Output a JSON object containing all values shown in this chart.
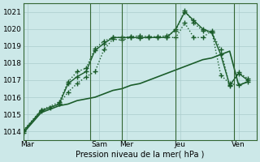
{
  "xlabel": "Pression niveau de la mer( hPa )",
  "bg_color": "#cce8e8",
  "grid_color": "#aacccc",
  "line_color": "#1a5c2a",
  "vline_color": "#336633",
  "ylim": [
    1013.5,
    1021.5
  ],
  "yticks": [
    1014,
    1015,
    1016,
    1017,
    1018,
    1019,
    1020,
    1021
  ],
  "xlim": [
    0,
    26
  ],
  "day_labels": [
    "Mar",
    "Sam",
    "Mer",
    "Jeu",
    "Ven"
  ],
  "day_positions": [
    0.5,
    8.5,
    11.5,
    17.5,
    24.0
  ],
  "vline_positions": [
    7.5,
    11.0,
    17.0,
    23.5
  ],
  "series": [
    {
      "x": [
        0,
        1,
        2,
        3,
        4,
        5,
        6,
        7,
        8,
        9,
        10,
        11,
        12,
        13,
        14,
        15,
        16,
        17,
        18,
        19,
        20,
        21,
        22,
        23,
        24,
        25
      ],
      "y": [
        1013.9,
        1014.5,
        1015.1,
        1015.3,
        1015.5,
        1015.6,
        1015.8,
        1015.9,
        1016.0,
        1016.2,
        1016.4,
        1016.5,
        1016.7,
        1016.8,
        1017.0,
        1017.2,
        1017.4,
        1017.6,
        1017.8,
        1018.0,
        1018.2,
        1018.3,
        1018.5,
        1018.7,
        1016.7,
        1016.9
      ],
      "linestyle": "-",
      "marker": null,
      "linewidth": 1.2
    },
    {
      "x": [
        0,
        2,
        4,
        5,
        6,
        7,
        8,
        9,
        10,
        11,
        12,
        13,
        14,
        15,
        16,
        17,
        18,
        19,
        20,
        21,
        22,
        23,
        24,
        25
      ],
      "y": [
        1014.0,
        1015.2,
        1015.6,
        1016.8,
        1017.2,
        1017.5,
        1018.75,
        1019.15,
        1019.5,
        1019.5,
        1019.5,
        1019.5,
        1019.5,
        1019.5,
        1019.5,
        1020.0,
        1021.0,
        1020.5,
        1020.0,
        1019.8,
        1018.5,
        1016.7,
        1017.4,
        1017.0
      ],
      "linestyle": "-",
      "marker": "+",
      "linewidth": 1.0
    },
    {
      "x": [
        0,
        2,
        4,
        5,
        6,
        7,
        8,
        9,
        10,
        11,
        12,
        13,
        14,
        15,
        16,
        17,
        18,
        19,
        20,
        21,
        22,
        23,
        24,
        25
      ],
      "y": [
        1014.05,
        1015.25,
        1015.7,
        1016.9,
        1017.5,
        1017.7,
        1018.85,
        1019.3,
        1019.5,
        1019.5,
        1019.55,
        1019.6,
        1019.55,
        1019.55,
        1019.6,
        1019.9,
        1021.1,
        1020.35,
        1019.9,
        1019.8,
        1018.8,
        1016.65,
        1017.45,
        1017.1
      ],
      "linestyle": ":",
      "marker": "+",
      "linewidth": 1.0
    },
    {
      "x": [
        0,
        2,
        3,
        4,
        5,
        6,
        7,
        8,
        9,
        10,
        11,
        12,
        13,
        14,
        15,
        16,
        17,
        18,
        19,
        20,
        21,
        22,
        23,
        24,
        25
      ],
      "y": [
        1013.9,
        1015.25,
        1015.4,
        1015.6,
        1016.3,
        1016.8,
        1017.2,
        1017.5,
        1018.8,
        1019.4,
        1019.35,
        1019.5,
        1019.45,
        1019.5,
        1019.5,
        1019.5,
        1019.5,
        1020.35,
        1019.5,
        1019.5,
        1019.9,
        1017.3,
        1016.8,
        1016.7,
        1016.9
      ],
      "linestyle": ":",
      "marker": "+",
      "linewidth": 1.0
    }
  ]
}
